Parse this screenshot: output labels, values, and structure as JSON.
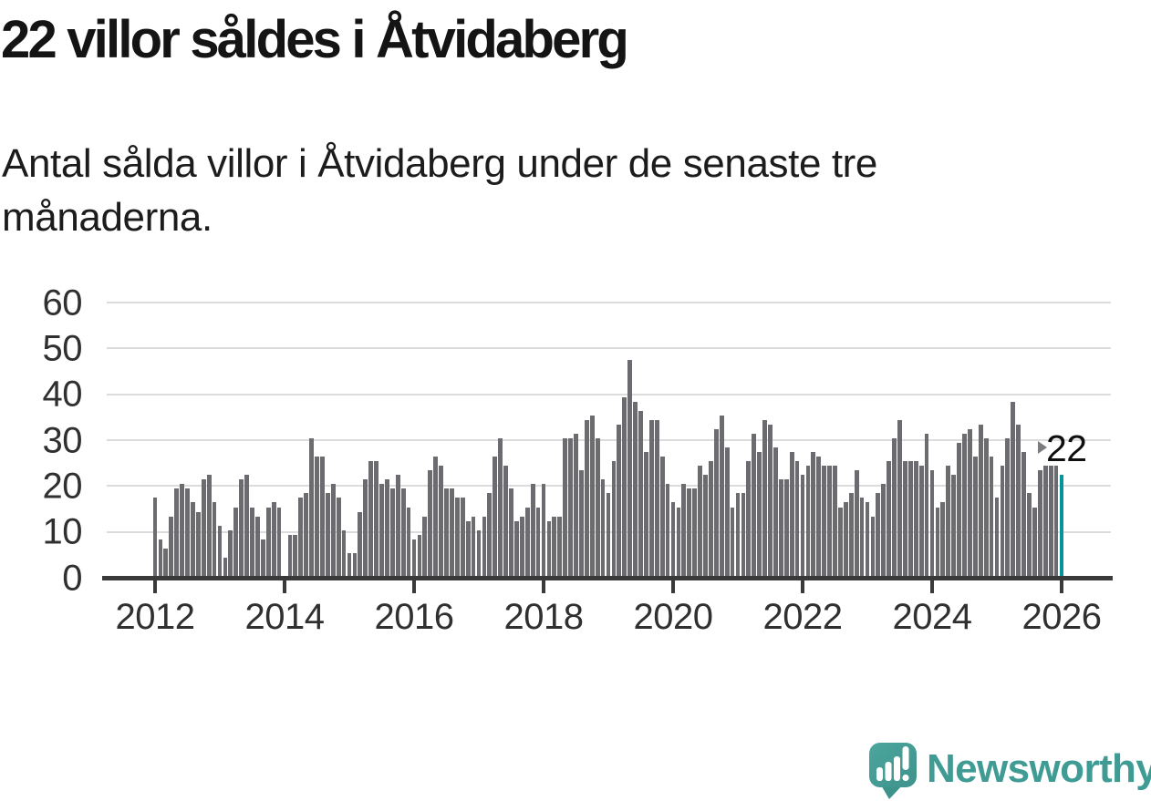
{
  "header": {
    "title": "22 villor såldes i Åtvidaberg",
    "subtitle": "Antal sålda villor i Åtvidaberg under de senaste tre månaderna."
  },
  "chart_data": {
    "type": "bar",
    "title": "22 villor såldes i Åtvidaberg",
    "xlabel": "",
    "ylabel": "",
    "x_period": "monthly",
    "x_range": [
      "2012-01",
      "2026-01"
    ],
    "x_tick_labels": [
      "2012",
      "2014",
      "2016",
      "2018",
      "2020",
      "2022",
      "2024",
      "2026"
    ],
    "y_ticks": [
      0,
      10,
      20,
      30,
      40,
      50,
      60
    ],
    "ylim": [
      0,
      63
    ],
    "grid": "horizontal",
    "legend": "none",
    "bar_color": "#6B6B70",
    "highlight_color": "#00969B",
    "values": [
      17,
      8,
      6,
      13,
      19,
      20,
      19,
      16,
      14,
      21,
      22,
      16,
      11,
      4,
      10,
      15,
      21,
      22,
      15,
      13,
      8,
      15,
      16,
      15,
      0,
      9,
      9,
      17,
      18,
      30,
      26,
      26,
      18,
      20,
      17,
      10,
      5,
      5,
      14,
      21,
      25,
      25,
      20,
      21,
      19,
      22,
      19,
      15,
      8,
      9,
      13,
      23,
      26,
      24,
      19,
      19,
      17,
      17,
      12,
      13,
      10,
      13,
      18,
      26,
      30,
      24,
      19,
      12,
      13,
      15,
      20,
      15,
      20,
      12,
      13,
      13,
      30,
      30,
      31,
      23,
      34,
      35,
      30,
      21,
      18,
      25,
      33,
      39,
      47,
      38,
      36,
      27,
      34,
      34,
      26,
      20,
      16,
      15,
      20,
      19,
      19,
      24,
      22,
      25,
      32,
      35,
      28,
      15,
      18,
      18,
      25,
      31,
      27,
      34,
      33,
      28,
      21,
      21,
      27,
      25,
      22,
      24,
      27,
      26,
      24,
      24,
      24,
      15,
      16,
      18,
      23,
      17,
      16,
      13,
      18,
      20,
      25,
      30,
      34,
      25,
      25,
      25,
      24,
      31,
      23,
      15,
      16,
      24,
      22,
      29,
      31,
      32,
      26,
      33,
      30,
      26,
      17,
      24,
      30,
      38,
      33,
      27,
      18,
      15,
      23,
      24,
      24,
      24,
      22
    ],
    "highlight": {
      "index": 168,
      "value": 22,
      "label": "22"
    }
  },
  "annotation": {
    "label": "22",
    "pointer": "right-triangle"
  },
  "footer": {
    "logo_text": "Newsworthy",
    "logo_color": "#3F9B93",
    "icon": "newsworthy-speech-bubble-bar-chart-icon"
  }
}
